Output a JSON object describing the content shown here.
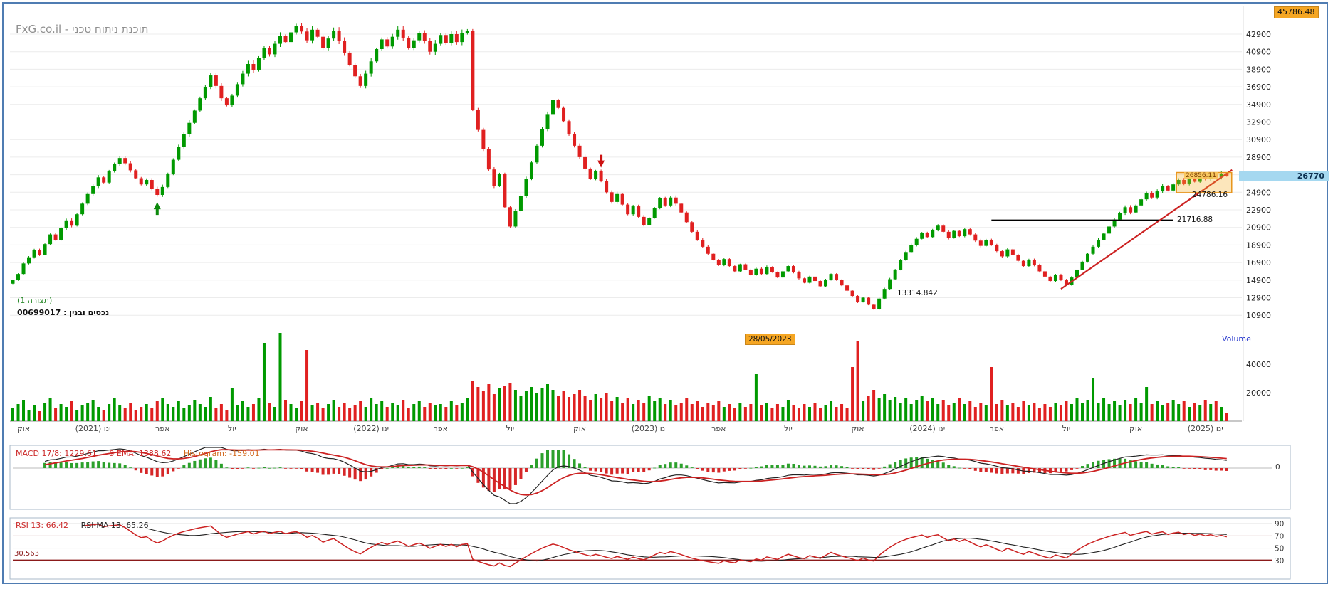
{
  "header": {
    "brand": "FxG.co.il - תוכנת ניתוח טכני",
    "ath_badge": "45786.48"
  },
  "chart_labels": {
    "config": "(תצורה 1)",
    "security": "נכסים ובנין : 00699017",
    "current_price": "26770",
    "date_badge": "28/05/2023",
    "volume_label": "Volume",
    "support_label": "21716.88",
    "resistance_label": "24786.16",
    "low_label": "13314.842",
    "box_label": "26856.11"
  },
  "macd_pane": {
    "macd_label": "MACD 17/8: 1229.61",
    "ema_label": "9 EMA: 1388.62",
    "hist_label": "Histogram: -159.01",
    "zero_label": "0"
  },
  "rsi_pane": {
    "rsi_label": "RSI 13: 66.42",
    "ma_label": "RSI-MA 13: 65.26",
    "oversold_label": "30.563"
  },
  "chart_data": {
    "type": "candlestick",
    "panes": [
      "price",
      "volume",
      "macd",
      "rsi"
    ],
    "current_price": 26770,
    "all_time_high": 45786.48,
    "price_axis_ticks": [
      42900,
      40900,
      38900,
      36900,
      34900,
      32900,
      30900,
      28900,
      26900,
      24900,
      22900,
      20900,
      18900,
      16900,
      14900,
      12900,
      10900
    ],
    "volume_axis_ticks": [
      40000,
      20000
    ],
    "rsi_axis_ticks": [
      90,
      70,
      50,
      30
    ],
    "macd_zero": 0,
    "x_ticks": [
      {
        "i": 2,
        "label": "אוק"
      },
      {
        "i": 15,
        "label": "ינו (2021)"
      },
      {
        "i": 28,
        "label": "אפר"
      },
      {
        "i": 41,
        "label": "יול"
      },
      {
        "i": 54,
        "label": "אוק"
      },
      {
        "i": 67,
        "label": "ינו (2022)"
      },
      {
        "i": 80,
        "label": "אפר"
      },
      {
        "i": 93,
        "label": "יול"
      },
      {
        "i": 106,
        "label": "אוק"
      },
      {
        "i": 119,
        "label": "ינו (2023)"
      },
      {
        "i": 132,
        "label": "אפר"
      },
      {
        "i": 145,
        "label": "יול"
      },
      {
        "i": 158,
        "label": "אוק"
      },
      {
        "i": 171,
        "label": "ינו (2024)"
      },
      {
        "i": 184,
        "label": "אפר"
      },
      {
        "i": 197,
        "label": "יול"
      },
      {
        "i": 210,
        "label": "אוק"
      },
      {
        "i": 223,
        "label": "ינו (2025)"
      }
    ],
    "closes": [
      14900,
      15600,
      16800,
      17500,
      18300,
      17800,
      19000,
      20100,
      19500,
      20800,
      21700,
      21100,
      22400,
      23600,
      24700,
      25600,
      26600,
      26000,
      27300,
      28100,
      28800,
      28200,
      27400,
      26500,
      25800,
      26300,
      25300,
      24600,
      25500,
      27000,
      28600,
      30100,
      31500,
      32800,
      34200,
      35600,
      36900,
      38200,
      37000,
      35600,
      34800,
      35900,
      37200,
      38400,
      39500,
      38800,
      40200,
      41300,
      40600,
      41800,
      42700,
      42000,
      43100,
      43800,
      43200,
      42200,
      43400,
      42600,
      41300,
      42400,
      43300,
      42100,
      40800,
      39400,
      38100,
      37000,
      38400,
      39800,
      41200,
      42300,
      41500,
      42600,
      43400,
      42500,
      41300,
      42200,
      43000,
      42100,
      40900,
      41800,
      42800,
      41900,
      42900,
      42000,
      43000,
      43300,
      34300,
      32000,
      29800,
      27500,
      25600,
      27000,
      23200,
      21000,
      22800,
      24500,
      26400,
      28300,
      30200,
      32100,
      33800,
      35400,
      34500,
      33000,
      31500,
      30200,
      28900,
      27600,
      26400,
      27300,
      26200,
      24900,
      23800,
      24700,
      23500,
      22400,
      23300,
      22100,
      21200,
      22000,
      23100,
      24200,
      23400,
      24300,
      23600,
      22600,
      21500,
      20400,
      19500,
      18700,
      17900,
      17200,
      16600,
      17300,
      16500,
      15900,
      16700,
      16100,
      15500,
      16200,
      15600,
      16400,
      15800,
      15200,
      15900,
      16500,
      15800,
      15100,
      14600,
      15300,
      14800,
      14200,
      14900,
      15600,
      14900,
      14300,
      13700,
      13100,
      12400,
      12900,
      12100,
      11600,
      12800,
      13900,
      15000,
      16100,
      17200,
      18100,
      18900,
      19600,
      20300,
      19800,
      20600,
      21100,
      20400,
      19700,
      20500,
      19900,
      20700,
      20100,
      19400,
      18800,
      19500,
      18900,
      18200,
      17600,
      18400,
      17800,
      17100,
      16500,
      17200,
      16600,
      15900,
      15300,
      14800,
      15500,
      14900,
      14400,
      15200,
      16100,
      17000,
      17900,
      18700,
      19500,
      20200,
      21000,
      21800,
      22500,
      23200,
      22600,
      23400,
      24100,
      24800,
      24300,
      25000,
      25600,
      25100,
      25800,
      26300,
      25900,
      26500,
      26100,
      26700,
      26400,
      26900,
      26600,
      27000,
      26770
    ],
    "volumes": [
      9000,
      12000,
      15000,
      8000,
      11000,
      7000,
      13000,
      16000,
      9000,
      12000,
      10000,
      14000,
      8000,
      11000,
      13000,
      15000,
      10000,
      8000,
      12000,
      16000,
      11000,
      9000,
      13000,
      8000,
      10000,
      12000,
      9000,
      14000,
      16000,
      12000,
      10000,
      14000,
      9000,
      11000,
      15000,
      12000,
      10000,
      17000,
      9000,
      12000,
      8000,
      23000,
      11000,
      14000,
      10000,
      12000,
      16000,
      55000,
      13000,
      10000,
      62000,
      15000,
      12000,
      9000,
      14000,
      50000,
      11000,
      13000,
      9000,
      12000,
      15000,
      10000,
      13000,
      9000,
      11000,
      14000,
      10000,
      16000,
      12000,
      14000,
      10000,
      13000,
      11000,
      15000,
      9000,
      12000,
      14000,
      10000,
      13000,
      11000,
      12000,
      10000,
      14000,
      11000,
      13000,
      16000,
      28000,
      24000,
      21000,
      26000,
      19000,
      23000,
      25000,
      27000,
      22000,
      18000,
      21000,
      24000,
      20000,
      23000,
      26000,
      22000,
      18000,
      21000,
      17000,
      19000,
      22000,
      18000,
      15000,
      19000,
      16000,
      20000,
      14000,
      17000,
      13000,
      16000,
      12000,
      15000,
      13000,
      18000,
      14000,
      16000,
      12000,
      15000,
      11000,
      13000,
      16000,
      12000,
      14000,
      10000,
      13000,
      11000,
      14000,
      10000,
      12000,
      9000,
      13000,
      10000,
      12000,
      33000,
      11000,
      13000,
      9000,
      12000,
      10000,
      15000,
      11000,
      9000,
      12000,
      10000,
      13000,
      9000,
      11000,
      14000,
      10000,
      12000,
      9000,
      38000,
      56000,
      14000,
      18000,
      22000,
      16000,
      19000,
      15000,
      17000,
      13000,
      16000,
      12000,
      15000,
      18000,
      14000,
      16000,
      12000,
      15000,
      11000,
      13000,
      16000,
      12000,
      14000,
      10000,
      13000,
      11000,
      38000,
      12000,
      15000,
      11000,
      13000,
      10000,
      14000,
      11000,
      13000,
      9000,
      12000,
      10000,
      13000,
      11000,
      14000,
      12000,
      16000,
      13000,
      15000,
      30000,
      13000,
      16000,
      12000,
      14000,
      11000,
      15000,
      12000,
      16000,
      13000,
      24000,
      12000,
      14000,
      11000,
      13000,
      15000,
      12000,
      14000,
      10000,
      13000,
      11000,
      15000,
      12000,
      14000,
      10000,
      6000
    ],
    "indicators": {
      "macd_fast": 8,
      "macd_slow": 17,
      "macd_signal": 9,
      "macd_value": 1229.61,
      "macd_signal_value": 1388.62,
      "macd_hist_value": -159.01,
      "rsi_period": 13,
      "rsi_value": 66.42,
      "rsi_ma_period": 13,
      "rsi_ma_value": 65.26,
      "rsi_oversold_level": 30.563
    },
    "annotations": {
      "support_line": {
        "price": 21716.88,
        "from_index": 183,
        "to_index": 217,
        "label": "21716.88"
      },
      "trend_line": {
        "from_index": 196,
        "from_price": 13900,
        "to_index": 228,
        "to_price": 27450
      },
      "buy_arrow": {
        "index": 27,
        "price": 24100
      },
      "sell_arrow": {
        "index": 110,
        "price": 27550
      },
      "selection_box": {
        "from_index": 218,
        "to_index": 227,
        "price_top": 27150,
        "price_bottom": 24850,
        "label": "26856.11"
      },
      "low_point_label": {
        "index": 165,
        "price": 13314.842,
        "text": "13314.842"
      },
      "resistance_value_label": {
        "text": "24786.16"
      },
      "date_flag": {
        "text": "28/05/2023"
      }
    },
    "colors": {
      "up": "#009900",
      "down": "#e02020",
      "grid": "#ececec",
      "axis_text": "#222222",
      "trend_line": "#cc2222",
      "support_line": "#000000",
      "selection": "#e8941a",
      "macd_line": "#222222",
      "macd_signal_line": "#cc2222",
      "hist_up": "#2ca02c",
      "hist_down": "#d62728",
      "rsi_line": "#cc2222",
      "rsi_ma_line": "#222222",
      "oversold_line": "#8b1a1a",
      "badge_orange": "#f5a623",
      "price_band_blue": "#a5d8f0"
    }
  }
}
